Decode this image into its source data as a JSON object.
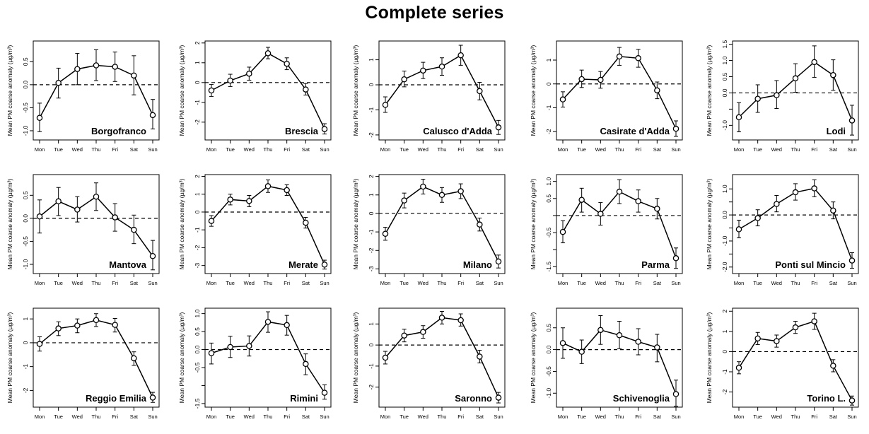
{
  "title": "Complete series",
  "chart_data": [
    {
      "type": "line",
      "station": "Borgofranco",
      "categories": [
        "Mon",
        "Tue",
        "Wed",
        "Thu",
        "Fri",
        "Sat",
        "Sun"
      ],
      "values": [
        -0.72,
        0.04,
        0.34,
        0.42,
        0.39,
        0.2,
        -0.66
      ],
      "err_low": [
        -1.02,
        -0.29,
        0.0,
        0.09,
        0.07,
        -0.22,
        -0.96
      ],
      "err_high": [
        -0.4,
        0.36,
        0.68,
        0.76,
        0.71,
        0.63,
        -0.32
      ],
      "ylabel": "Mean PM coarse anomaly (µg/m³)",
      "ylim": [
        -1.2,
        0.95
      ],
      "yticks": [
        -1.0,
        -0.5,
        0.0,
        0.5
      ],
      "ytick_labels": [
        "-1.0",
        "-0.5",
        "0.0",
        "0.5"
      ],
      "reference_line": 0
    },
    {
      "type": "line",
      "station": "Brescia",
      "categories": [
        "Mon",
        "Tue",
        "Wed",
        "Thu",
        "Fri",
        "Sat",
        "Sun"
      ],
      "values": [
        -0.4,
        0.1,
        0.45,
        1.48,
        0.95,
        -0.35,
        -2.35
      ],
      "err_low": [
        -0.7,
        -0.2,
        0.12,
        1.2,
        0.65,
        -0.63,
        -2.6
      ],
      "err_high": [
        -0.1,
        0.42,
        0.78,
        1.78,
        1.25,
        -0.05,
        -2.08
      ],
      "ylabel": "Mean PM coarse anomaly (µg/m³)",
      "ylim": [
        -2.9,
        2.1
      ],
      "yticks": [
        -2,
        -1,
        0,
        1,
        2
      ],
      "ytick_labels": [
        "-2",
        "-1",
        "0",
        "1",
        "2"
      ],
      "reference_line": 0
    },
    {
      "type": "line",
      "station": "Calusco d'Adda",
      "categories": [
        "Mon",
        "Tue",
        "Wed",
        "Thu",
        "Fri",
        "Sat",
        "Sun"
      ],
      "values": [
        -0.8,
        0.22,
        0.57,
        0.73,
        1.18,
        -0.25,
        -1.7
      ],
      "err_low": [
        -1.1,
        -0.08,
        0.25,
        0.38,
        0.78,
        -0.6,
        -1.98
      ],
      "err_high": [
        -0.48,
        0.55,
        0.9,
        1.08,
        1.58,
        0.1,
        -1.42
      ],
      "ylabel": "Mean PM coarse anomaly (µg/m³)",
      "ylim": [
        -2.2,
        1.75
      ],
      "yticks": [
        -2,
        -1,
        0,
        1
      ],
      "ytick_labels": [
        "-2",
        "-1",
        "0",
        "1"
      ],
      "reference_line": 0
    },
    {
      "type": "line",
      "station": "Casirate d'Adda",
      "categories": [
        "Mon",
        "Tue",
        "Wed",
        "Thu",
        "Fri",
        "Sat",
        "Sun"
      ],
      "values": [
        -0.65,
        0.2,
        0.17,
        1.15,
        1.08,
        -0.27,
        -1.88
      ],
      "err_low": [
        -0.97,
        -0.15,
        -0.18,
        0.78,
        0.7,
        -0.62,
        -2.2
      ],
      "err_high": [
        -0.33,
        0.58,
        0.52,
        1.53,
        1.45,
        0.08,
        -1.55
      ],
      "ylabel": "Mean PM coarse anomaly (µg/m³)",
      "ylim": [
        -2.35,
        1.8
      ],
      "yticks": [
        -2,
        -1,
        0,
        1
      ],
      "ytick_labels": [
        "-2",
        "-1",
        "0",
        "1"
      ],
      "reference_line": 0
    },
    {
      "type": "line",
      "station": "Lodi",
      "categories": [
        "Mon",
        "Tue",
        "Wed",
        "Thu",
        "Fri",
        "Sat",
        "Sun"
      ],
      "values": [
        -0.75,
        -0.18,
        -0.07,
        0.45,
        0.95,
        0.55,
        -0.85
      ],
      "err_low": [
        -1.2,
        -0.6,
        -0.48,
        0.02,
        0.48,
        0.08,
        -1.3
      ],
      "err_high": [
        -0.3,
        0.25,
        0.38,
        0.9,
        1.45,
        1.02,
        -0.38
      ],
      "ylabel": "Mean PM coarse anomaly (µg/m³)",
      "ylim": [
        -1.45,
        1.6
      ],
      "yticks": [
        -1.0,
        -0.5,
        0.0,
        0.5,
        1.0,
        1.5
      ],
      "ytick_labels": [
        "-1.0",
        "",
        "0.0",
        "0.5",
        "1.0",
        "1.5"
      ],
      "reference_line": 0
    },
    {
      "type": "line",
      "station": "Mantova",
      "categories": [
        "Mon",
        "Tue",
        "Wed",
        "Thu",
        "Fri",
        "Sat",
        "Sun"
      ],
      "values": [
        0.04,
        0.37,
        0.19,
        0.47,
        0.02,
        -0.25,
        -0.82
      ],
      "err_low": [
        -0.32,
        0.06,
        -0.08,
        0.17,
        -0.28,
        -0.55,
        -1.12
      ],
      "err_high": [
        0.4,
        0.67,
        0.47,
        0.77,
        0.32,
        0.07,
        -0.48
      ],
      "ylabel": "Mean PM coarse anomaly (µg/m³)",
      "ylim": [
        -1.2,
        0.95
      ],
      "yticks": [
        -1.0,
        -0.5,
        0.0,
        0.5
      ],
      "ytick_labels": [
        "-1.0",
        "-0.5",
        "0.0",
        "0.5"
      ],
      "reference_line": 0
    },
    {
      "type": "line",
      "station": "Merate",
      "categories": [
        "Mon",
        "Tue",
        "Wed",
        "Thu",
        "Fri",
        "Sat",
        "Sun"
      ],
      "values": [
        -0.5,
        0.7,
        0.62,
        1.45,
        1.23,
        -0.6,
        -2.95
      ],
      "err_low": [
        -0.8,
        0.4,
        0.3,
        1.1,
        0.93,
        -0.9,
        -3.2
      ],
      "err_high": [
        -0.2,
        1.0,
        0.93,
        1.8,
        1.53,
        -0.3,
        -2.7
      ],
      "ylabel": "Mean PM coarse anomaly (µg/m³)",
      "ylim": [
        -3.45,
        2.1
      ],
      "yticks": [
        -3,
        -2,
        -1,
        0,
        1,
        2
      ],
      "ytick_labels": [
        "-3",
        "-2",
        "-1",
        "0",
        "1",
        "2"
      ],
      "reference_line": 0
    },
    {
      "type": "line",
      "station": "Milano",
      "categories": [
        "Mon",
        "Tue",
        "Wed",
        "Thu",
        "Fri",
        "Sat",
        "Sun"
      ],
      "values": [
        -1.1,
        0.7,
        1.45,
        1.0,
        1.2,
        -0.6,
        -2.6
      ],
      "err_low": [
        -1.45,
        0.3,
        1.05,
        0.6,
        0.8,
        -0.95,
        -2.95
      ],
      "err_high": [
        -0.75,
        1.1,
        1.85,
        1.4,
        1.6,
        -0.25,
        -2.25
      ],
      "ylabel": "Mean PM coarse anomaly (µg/m³)",
      "ylim": [
        -3.25,
        2.1
      ],
      "yticks": [
        -3,
        -2,
        -1,
        0,
        1,
        2
      ],
      "ytick_labels": [
        "-3",
        "-2",
        "-1",
        "0",
        "1",
        "2"
      ],
      "reference_line": 0
    },
    {
      "type": "line",
      "station": "Parma",
      "categories": [
        "Mon",
        "Tue",
        "Wed",
        "Thu",
        "Fri",
        "Sat",
        "Sun"
      ],
      "values": [
        -0.48,
        0.46,
        0.05,
        0.7,
        0.42,
        0.2,
        -1.25
      ],
      "err_low": [
        -0.8,
        0.1,
        -0.28,
        0.35,
        0.1,
        -0.1,
        -1.55
      ],
      "err_high": [
        -0.15,
        0.8,
        0.38,
        1.05,
        0.75,
        0.5,
        -0.95
      ],
      "ylabel": "Mean PM coarse anomaly (µg/m³)",
      "ylim": [
        -1.7,
        1.2
      ],
      "yticks": [
        -1.5,
        -1.0,
        -0.5,
        0.0,
        0.5,
        1.0
      ],
      "ytick_labels": [
        "-1.5",
        "",
        "-0.5",
        "",
        "0.5",
        "1.0"
      ],
      "reference_line": 0
    },
    {
      "type": "line",
      "station": "Ponti sul Mincio",
      "categories": [
        "Mon",
        "Tue",
        "Wed",
        "Thu",
        "Fri",
        "Sat",
        "Sun"
      ],
      "values": [
        -0.55,
        -0.12,
        0.42,
        0.87,
        1.02,
        0.17,
        -1.75
      ],
      "err_low": [
        -0.88,
        -0.42,
        0.12,
        0.57,
        0.7,
        -0.15,
        -2.05
      ],
      "err_high": [
        -0.2,
        0.2,
        0.75,
        1.2,
        1.35,
        0.5,
        -1.45
      ],
      "ylabel": "Mean PM coarse anomaly (µg/m³)",
      "ylim": [
        -2.25,
        1.55
      ],
      "yticks": [
        -2.0,
        -1.5,
        -1.0,
        -0.5,
        0.0,
        0.5,
        1.0
      ],
      "ytick_labels": [
        "-2.0",
        "",
        "-1.0",
        "",
        "0.0",
        "",
        "1.0"
      ],
      "reference_line": 0
    },
    {
      "type": "line",
      "station": "Reggio Emilia",
      "categories": [
        "Mon",
        "Tue",
        "Wed",
        "Thu",
        "Fri",
        "Sat",
        "Sun"
      ],
      "values": [
        -0.05,
        0.6,
        0.72,
        0.95,
        0.75,
        -0.65,
        -2.3
      ],
      "err_low": [
        -0.35,
        0.3,
        0.42,
        0.68,
        0.45,
        -0.95,
        -2.5
      ],
      "err_high": [
        0.25,
        0.88,
        1.0,
        1.22,
        1.02,
        -0.38,
        -2.08
      ],
      "ylabel": "Mean PM coarse anomaly (µg/m³)",
      "ylim": [
        -2.7,
        1.45
      ],
      "yticks": [
        -2,
        -1,
        0,
        1
      ],
      "ytick_labels": [
        "-2",
        "-1",
        "0",
        "1"
      ],
      "reference_line": 0
    },
    {
      "type": "line",
      "station": "Rimini",
      "categories": [
        "Mon",
        "Tue",
        "Wed",
        "Thu",
        "Fri",
        "Sat",
        "Sun"
      ],
      "values": [
        -0.1,
        0.07,
        0.1,
        0.77,
        0.68,
        -0.4,
        -1.2
      ],
      "err_low": [
        -0.4,
        -0.22,
        -0.18,
        0.48,
        0.4,
        -0.7,
        -1.38
      ],
      "err_high": [
        0.18,
        0.37,
        0.38,
        1.05,
        0.95,
        -0.12,
        -0.98
      ],
      "ylabel": "Mean PM coarse anomaly (µg/m³)",
      "ylim": [
        -1.6,
        1.15
      ],
      "yticks": [
        -1.5,
        -1.0,
        -0.5,
        0.0,
        0.5,
        1.0
      ],
      "ytick_labels": [
        "-1.5",
        "",
        "-0.5",
        "0.0",
        "0.5",
        "1.0"
      ],
      "reference_line": 0
    },
    {
      "type": "line",
      "station": "Saronno",
      "categories": [
        "Mon",
        "Tue",
        "Wed",
        "Thu",
        "Fri",
        "Sat",
        "Sun"
      ],
      "values": [
        -0.6,
        0.45,
        0.62,
        1.3,
        1.18,
        -0.55,
        -2.5
      ],
      "err_low": [
        -0.9,
        0.15,
        0.32,
        1.0,
        0.9,
        -0.85,
        -2.75
      ],
      "err_high": [
        -0.3,
        0.75,
        0.92,
        1.6,
        1.48,
        -0.25,
        -2.25
      ],
      "ylabel": "Mean PM coarse anomaly (µg/m³)",
      "ylim": [
        -2.95,
        1.75
      ],
      "yticks": [
        -2,
        -1,
        0,
        1
      ],
      "ytick_labels": [
        "-2",
        "-1",
        "0",
        "1"
      ],
      "reference_line": 0
    },
    {
      "type": "line",
      "station": "Schivenoglia",
      "categories": [
        "Mon",
        "Tue",
        "Wed",
        "Thu",
        "Fri",
        "Sat",
        "Sun"
      ],
      "values": [
        0.15,
        -0.05,
        0.45,
        0.33,
        0.18,
        0.05,
        -1.02
      ],
      "err_low": [
        -0.2,
        -0.32,
        0.12,
        0.02,
        -0.12,
        -0.28,
        -1.3
      ],
      "err_high": [
        0.5,
        0.22,
        0.78,
        0.65,
        0.48,
        0.35,
        -0.7
      ],
      "ylabel": "Mean PM coarse anomaly (µg/m³)",
      "ylim": [
        -1.32,
        0.95
      ],
      "yticks": [
        -1.0,
        -0.5,
        0.0,
        0.5
      ],
      "ytick_labels": [
        "-1.0",
        "-0.5",
        "0.0",
        "0.5"
      ],
      "reference_line": 0
    },
    {
      "type": "line",
      "station": "Torino L.",
      "categories": [
        "Mon",
        "Tue",
        "Wed",
        "Thu",
        "Fri",
        "Sat",
        "Sun"
      ],
      "values": [
        -0.8,
        0.65,
        0.52,
        1.2,
        1.5,
        -0.7,
        -2.42
      ],
      "err_low": [
        -1.1,
        0.35,
        0.22,
        0.9,
        1.1,
        -1.0,
        -2.65
      ],
      "err_high": [
        -0.5,
        0.95,
        0.82,
        1.5,
        1.9,
        -0.4,
        -2.2
      ],
      "ylabel": "Mean PM coarse anomaly (µg/m³)",
      "ylim": [
        -2.75,
        2.15
      ],
      "yticks": [
        -2,
        -1,
        0,
        1,
        2
      ],
      "ytick_labels": [
        "-2",
        "-1",
        "0",
        "1",
        "2"
      ],
      "reference_line": 0
    }
  ]
}
